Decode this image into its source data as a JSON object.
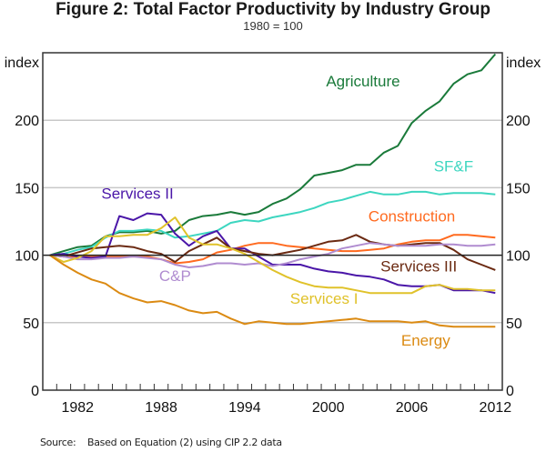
{
  "title": "Figure 2: Total Factor Productivity by Industry Group",
  "subtitle": "1980 = 100",
  "source": {
    "label": "Source:",
    "text": "Based on Equation (2) using CIP 2.2 data"
  },
  "chart_data": {
    "type": "line",
    "title": "Figure 2: Total Factor Productivity by Industry Group",
    "subtitle": "1980 = 100",
    "xlabel": "",
    "ylabel_left": "index",
    "ylabel_right": "index",
    "ylim": [
      0,
      250
    ],
    "xlim": [
      1980,
      2012
    ],
    "yticks": [
      0,
      50,
      100,
      150,
      200
    ],
    "ytick_labels": [
      "0",
      "50",
      "100",
      "150",
      "200"
    ],
    "xtick_labels": [
      "1982",
      "1988",
      "1994",
      "2000",
      "2006",
      "2012"
    ],
    "xtick_years": [
      1982,
      1988,
      1994,
      2000,
      2006,
      2012
    ],
    "grid": true,
    "reference_line": 100,
    "x": [
      1980,
      1981,
      1982,
      1983,
      1984,
      1985,
      1986,
      1987,
      1988,
      1989,
      1990,
      1991,
      1992,
      1993,
      1994,
      1995,
      1996,
      1997,
      1998,
      1999,
      2000,
      2001,
      2002,
      2003,
      2004,
      2005,
      2006,
      2007,
      2008,
      2009,
      2010,
      2011,
      2012
    ],
    "series": [
      {
        "name": "Agriculture",
        "color": "#1a7a3a",
        "label_pos": "upper-right",
        "values": [
          100,
          103,
          106,
          107,
          114,
          117,
          117,
          118,
          116,
          118,
          126,
          129,
          130,
          132,
          130,
          132,
          138,
          142,
          149,
          159,
          161,
          163,
          167,
          167,
          176,
          181,
          198,
          207,
          214,
          227,
          234,
          237,
          249
        ]
      },
      {
        "name": "SF&F",
        "color": "#3dd6c0",
        "label_pos": "right",
        "values": [
          100,
          101,
          104,
          106,
          113,
          118,
          118,
          119,
          118,
          113,
          114,
          116,
          118,
          124,
          126,
          125,
          128,
          130,
          132,
          135,
          139,
          141,
          144,
          147,
          145,
          145,
          147,
          147,
          145,
          146,
          146,
          146,
          145
        ]
      },
      {
        "name": "Construction",
        "color": "#ff6a1f",
        "label_pos": "right",
        "values": [
          100,
          99,
          99,
          99,
          99,
          99,
          99,
          99,
          97,
          94,
          95,
          97,
          102,
          104,
          107,
          109,
          109,
          107,
          106,
          105,
          104,
          103,
          103,
          104,
          105,
          108,
          110,
          111,
          111,
          115,
          115,
          114,
          113
        ]
      },
      {
        "name": "Services II",
        "color": "#4a16a8",
        "label_pos": "upper-left",
        "values": [
          100,
          101,
          99,
          98,
          99,
          129,
          126,
          131,
          130,
          116,
          107,
          114,
          118,
          105,
          105,
          99,
          93,
          93,
          93,
          90,
          88,
          87,
          85,
          84,
          82,
          78,
          77,
          77,
          78,
          74,
          74,
          74,
          72
        ]
      },
      {
        "name": "Services III",
        "color": "#6b2a12",
        "label_pos": "right",
        "values": [
          100,
          99,
          102,
          105,
          106,
          107,
          106,
          103,
          101,
          95,
          103,
          108,
          113,
          105,
          103,
          101,
          100,
          102,
          104,
          107,
          110,
          111,
          115,
          110,
          108,
          107,
          108,
          109,
          109,
          104,
          97,
          93,
          89
        ]
      },
      {
        "name": "C&P",
        "color": "#b08cd0",
        "label_pos": "left",
        "values": [
          100,
          99,
          97,
          97,
          98,
          98,
          99,
          98,
          97,
          93,
          91,
          92,
          94,
          94,
          93,
          94,
          92,
          94,
          97,
          99,
          101,
          105,
          107,
          109,
          108,
          107,
          107,
          107,
          108,
          108,
          107,
          107,
          108
        ]
      },
      {
        "name": "Services I",
        "color": "#e0c22a",
        "label_pos": "center",
        "values": [
          100,
          95,
          98,
          103,
          114,
          114,
          115,
          115,
          120,
          128,
          113,
          108,
          108,
          105,
          101,
          95,
          89,
          84,
          80,
          77,
          76,
          76,
          74,
          72,
          72,
          72,
          72,
          77,
          78,
          75,
          75,
          74,
          74
        ]
      },
      {
        "name": "Energy",
        "color": "#db8a12",
        "label_pos": "lower-right",
        "values": [
          100,
          93,
          87,
          82,
          79,
          72,
          68,
          65,
          66,
          63,
          59,
          57,
          58,
          53,
          49,
          51,
          50,
          49,
          49,
          50,
          51,
          52,
          53,
          51,
          51,
          51,
          50,
          51,
          48,
          47,
          47,
          47,
          47
        ]
      }
    ]
  }
}
